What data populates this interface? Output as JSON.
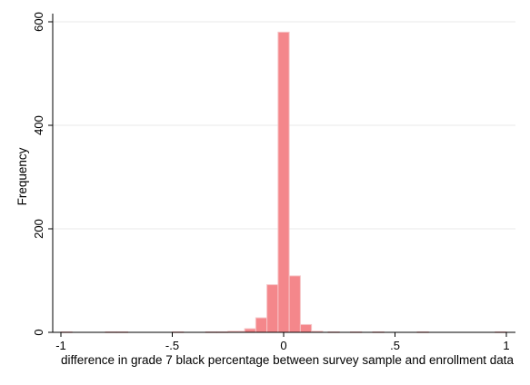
{
  "chart_data": {
    "type": "bar",
    "subtype": "histogram",
    "title": "",
    "xlabel": "difference in grade 7 black percentage between survey sample and enrollment data",
    "ylabel": "Frequency",
    "xlim": [
      -1,
      1
    ],
    "ylim": [
      0,
      600
    ],
    "bin_width": 0.05,
    "xticks": [
      {
        "value": -1,
        "label": "-1"
      },
      {
        "value": -0.5,
        "label": "-.5"
      },
      {
        "value": 0,
        "label": "0"
      },
      {
        "value": 0.5,
        "label": ".5"
      },
      {
        "value": 1,
        "label": "1"
      }
    ],
    "yticks": [
      {
        "value": 0,
        "label": "0"
      },
      {
        "value": 200,
        "label": "200"
      },
      {
        "value": 400,
        "label": "400"
      },
      {
        "value": 600,
        "label": "600"
      }
    ],
    "grid": true,
    "bar_color": "#f4878b",
    "bins": [
      {
        "x0": -1.0,
        "count": 1
      },
      {
        "x0": -0.8,
        "count": 1
      },
      {
        "x0": -0.75,
        "count": 1
      },
      {
        "x0": -0.5,
        "count": 1
      },
      {
        "x0": -0.35,
        "count": 1
      },
      {
        "x0": -0.3,
        "count": 1
      },
      {
        "x0": -0.25,
        "count": 2
      },
      {
        "x0": -0.2,
        "count": 2
      },
      {
        "x0": -0.175,
        "count": 7
      },
      {
        "x0": -0.125,
        "count": 28
      },
      {
        "x0": -0.075,
        "count": 92
      },
      {
        "x0": -0.025,
        "count": 580
      },
      {
        "x0": 0.025,
        "count": 109
      },
      {
        "x0": 0.075,
        "count": 15
      },
      {
        "x0": 0.125,
        "count": 2
      },
      {
        "x0": 0.2,
        "count": 1
      },
      {
        "x0": 0.3,
        "count": 1
      },
      {
        "x0": 0.4,
        "count": 1
      },
      {
        "x0": 0.6,
        "count": 1
      },
      {
        "x0": 0.95,
        "count": 1
      }
    ]
  }
}
